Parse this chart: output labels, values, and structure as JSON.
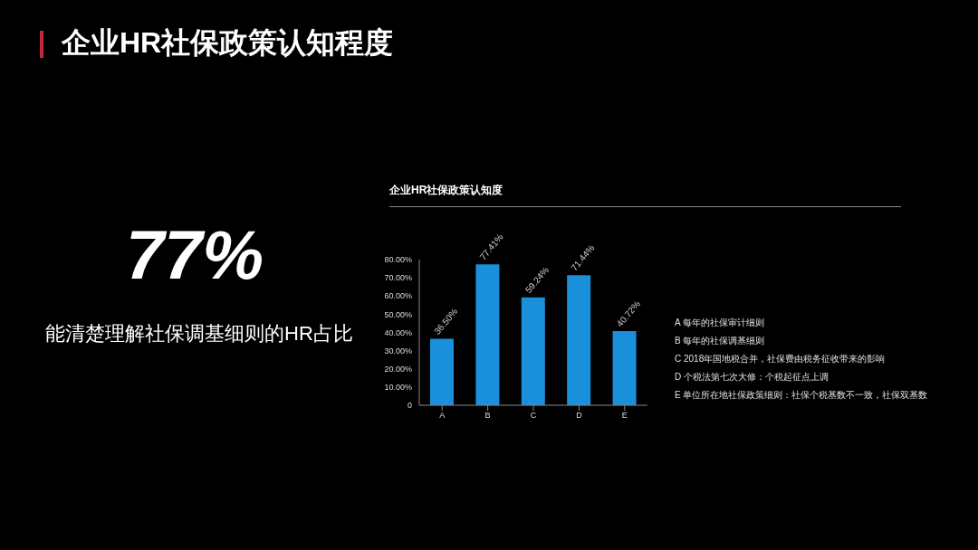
{
  "chart_data": {
    "type": "bar",
    "title": "企业HR社保政策认知程度",
    "subtitle": "企业HR社保政策认知度",
    "annotations": [
      "77%",
      "能清楚理解社保调基细则的HR占比",
      "A 每年的社保审计细则",
      "B 每年的社保调基细则",
      "C 2018年国地税合并，社保费由税务征收带来的影响",
      "D 个税法第七次大修：个税起征点上调",
      "E 单位所在地社保政策细则：社保个税基数不一致，社保双基数"
    ],
    "categories": [
      "A",
      "B",
      "C",
      "D",
      "E"
    ],
    "values": [
      36.5,
      77.41,
      59.24,
      71.44,
      40.72
    ],
    "value_labels": [
      "36.50%",
      "77.41%",
      "59.24%",
      "71.44%",
      "40.72%"
    ],
    "color": "#1a90dc",
    "ylim": [
      0,
      80
    ],
    "yticks": [
      {
        "value": 0,
        "label": "0"
      },
      {
        "value": 10,
        "label": "10.00%"
      },
      {
        "value": 20,
        "label": "20.00%"
      },
      {
        "value": 30,
        "label": "30.00%"
      },
      {
        "value": 40,
        "label": "40.00%"
      },
      {
        "value": 50,
        "label": "50.00%"
      },
      {
        "value": 60,
        "label": "60.00%"
      },
      {
        "value": 70,
        "label": "70.00%"
      },
      {
        "value": 80,
        "label": "80.00%"
      }
    ],
    "grid": false,
    "legend": false
  }
}
